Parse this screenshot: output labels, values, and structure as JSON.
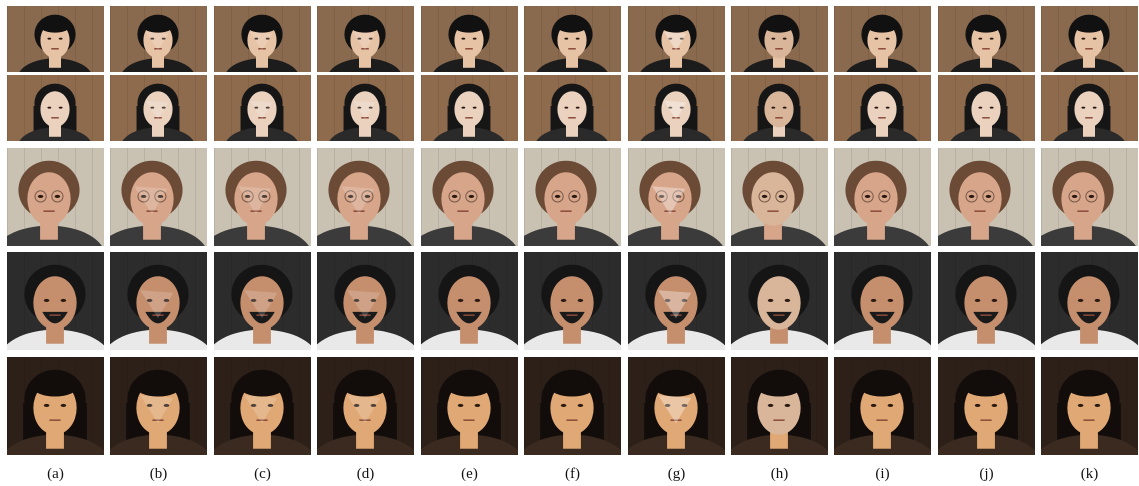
{
  "figure": {
    "labels": [
      "(a)",
      "(b)",
      "(c)",
      "(d)",
      "(e)",
      "(f)",
      "(g)",
      "(h)",
      "(i)",
      "(j)",
      "(k)"
    ],
    "rows": [
      {
        "subject": "young-man-dark-hair",
        "background": "#8a6a4e",
        "skin": "#e7c3a6",
        "hair": "#111111",
        "clothing": "#1c1c1c"
      },
      {
        "subject": "woman-long-dark-hair",
        "background": "#8f6b4d",
        "skin": "#ead2bf",
        "hair": "#161616",
        "clothing": "#2a2a2a"
      },
      {
        "subject": "woman-profile-glasses",
        "background": "#c9c2b2",
        "skin": "#d7a58a",
        "hair": "#6b4a36",
        "clothing": "#3b3b3b"
      },
      {
        "subject": "man-beard-car-interior",
        "background": "#2c2c2c",
        "skin": "#c58e6d",
        "hair": "#151515",
        "clothing": "#e9e9e9"
      },
      {
        "subject": "woman-bangs-sunlit",
        "background": "#2d2018",
        "skin": "#e0a874",
        "hair": "#120d0b",
        "clothing": "#3a2a20"
      }
    ]
  }
}
